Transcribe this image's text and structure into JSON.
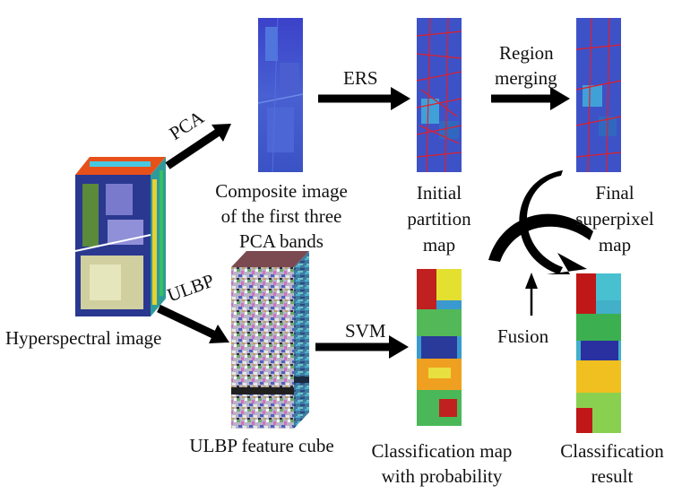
{
  "diagram": {
    "arrows": [
      "PCA",
      "ERS",
      "Region merging",
      "ULBP",
      "SVM",
      "Fusion"
    ],
    "labels": {
      "hyperspectral": "Hyperspectral image",
      "composite": [
        "Composite image",
        "of the first three",
        "PCA bands"
      ],
      "initial": [
        "Initial",
        "partition",
        "map"
      ],
      "final": [
        "Final",
        "superpixel",
        "map"
      ],
      "ulbp_cube": "ULBP feature cube",
      "classmap": [
        "Classification map",
        "with probability"
      ],
      "result": [
        "Classification",
        "result"
      ]
    },
    "arrow_labels": {
      "pca": "PCA",
      "ers": "ERS",
      "region_merging": [
        "Region",
        "merging"
      ],
      "ulbp": "ULBP",
      "svm": "SVM",
      "fusion": "Fusion"
    },
    "colors": {
      "pca_blue": "#3a4fc8",
      "partition_red": "#e0202a",
      "arrow": "#000000"
    }
  }
}
